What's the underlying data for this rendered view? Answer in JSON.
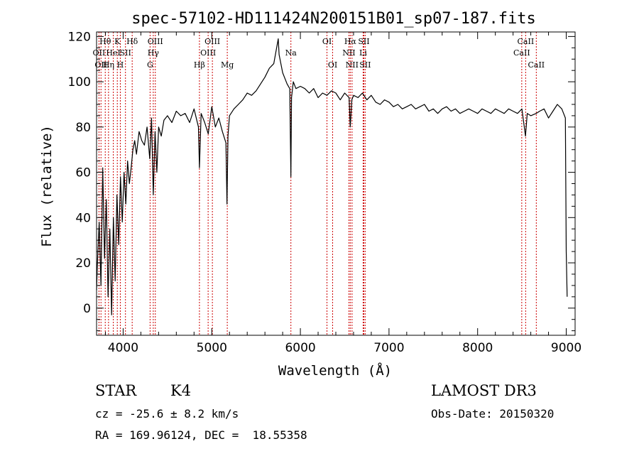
{
  "chart_data": {
    "type": "line",
    "title": "spec-57102-HD111424N200151B01_sp07-187.fits",
    "xlabel": "Wavelength (Å)",
    "ylabel": "Flux (relative)",
    "xlim": [
      3700,
      9100
    ],
    "ylim": [
      -12,
      122
    ],
    "x_ticks": [
      4000,
      5000,
      6000,
      7000,
      8000,
      9000
    ],
    "y_ticks": [
      0,
      20,
      40,
      60,
      80,
      100,
      120
    ],
    "grid": false,
    "series_color": "#000000",
    "line_marker_color": "#cc0000",
    "spectrum": {
      "x": [
        3700,
        3710,
        3730,
        3750,
        3770,
        3790,
        3810,
        3830,
        3850,
        3870,
        3890,
        3910,
        3930,
        3950,
        3970,
        3990,
        4010,
        4030,
        4050,
        4070,
        4090,
        4110,
        4130,
        4150,
        4180,
        4210,
        4240,
        4270,
        4300,
        4320,
        4340,
        4360,
        4380,
        4400,
        4430,
        4460,
        4500,
        4550,
        4600,
        4650,
        4700,
        4750,
        4800,
        4850,
        4861,
        4880,
        4920,
        4960,
        5000,
        5040,
        5080,
        5120,
        5160,
        5172,
        5183,
        5200,
        5250,
        5300,
        5350,
        5400,
        5450,
        5500,
        5550,
        5600,
        5650,
        5700,
        5750,
        5760,
        5800,
        5850,
        5880,
        5893,
        5900,
        5920,
        5950,
        6000,
        6050,
        6100,
        6150,
        6200,
        6250,
        6300,
        6350,
        6400,
        6450,
        6500,
        6550,
        6563,
        6580,
        6600,
        6650,
        6700,
        6750,
        6800,
        6850,
        6900,
        6950,
        7000,
        7050,
        7100,
        7150,
        7200,
        7250,
        7300,
        7350,
        7400,
        7450,
        7500,
        7550,
        7600,
        7650,
        7700,
        7750,
        7800,
        7850,
        7900,
        7950,
        8000,
        8050,
        8100,
        8150,
        8200,
        8250,
        8300,
        8350,
        8400,
        8450,
        8500,
        8540,
        8560,
        8600,
        8660,
        8700,
        8750,
        8800,
        8850,
        8900,
        8950,
        8990,
        9000,
        9010
      ],
      "y": [
        8,
        20,
        38,
        10,
        62,
        22,
        48,
        5,
        35,
        -3,
        40,
        12,
        50,
        28,
        58,
        38,
        60,
        46,
        65,
        55,
        62,
        70,
        74,
        68,
        78,
        74,
        72,
        80,
        66,
        84,
        50,
        78,
        60,
        80,
        76,
        83,
        85,
        82,
        87,
        85,
        86,
        82,
        88,
        80,
        62,
        86,
        82,
        77,
        89,
        80,
        84,
        78,
        73,
        46,
        76,
        85,
        88,
        90,
        92,
        95,
        94,
        96,
        99,
        102,
        106,
        108,
        119,
        112,
        104,
        99,
        97,
        58,
        93,
        100,
        97,
        98,
        97,
        95,
        97,
        93,
        95,
        94,
        96,
        95,
        92,
        95,
        93,
        80,
        92,
        94,
        93,
        95,
        92,
        94,
        91,
        90,
        92,
        91,
        89,
        90,
        88,
        89,
        90,
        88,
        89,
        90,
        87,
        88,
        86,
        88,
        89,
        87,
        88,
        86,
        87,
        88,
        87,
        86,
        88,
        87,
        86,
        88,
        87,
        86,
        88,
        87,
        86,
        88,
        76,
        86,
        85,
        86,
        87,
        88,
        84,
        87,
        90,
        88,
        84,
        25,
        5
      ]
    },
    "lines": [
      {
        "x": 3727,
        "label": "OII",
        "row": 2
      },
      {
        "x": 3750,
        "label": "OII",
        "row": 3
      },
      {
        "x": 3798,
        "label": "Hθ",
        "row": 1
      },
      {
        "x": 3835,
        "label": "Hη",
        "row": 3
      },
      {
        "x": 3889,
        "label": "HeI",
        "row": 2
      },
      {
        "x": 3934,
        "label": "K",
        "row": 1
      },
      {
        "x": 3968,
        "label": "H",
        "row": 3
      },
      {
        "x": 4026,
        "label": "SII",
        "row": 2
      },
      {
        "x": 4102,
        "label": "Hδ",
        "row": 1
      },
      {
        "x": 4304,
        "label": "G",
        "row": 3
      },
      {
        "x": 4340,
        "label": "Hγ",
        "row": 2
      },
      {
        "x": 4363,
        "label": "OIII",
        "row": 1
      },
      {
        "x": 4861,
        "label": "Hβ",
        "row": 3
      },
      {
        "x": 4959,
        "label": "OIII",
        "row": 2
      },
      {
        "x": 5007,
        "label": "OIII",
        "row": 1
      },
      {
        "x": 5175,
        "label": "Mg",
        "row": 3
      },
      {
        "x": 5893,
        "label": "Na",
        "row": 2
      },
      {
        "x": 6300,
        "label": "OI",
        "row": 1
      },
      {
        "x": 6364,
        "label": "OI",
        "row": 3
      },
      {
        "x": 6548,
        "label": "NII",
        "row": 2
      },
      {
        "x": 6563,
        "label": "Hα",
        "row": 1
      },
      {
        "x": 6583,
        "label": "NII",
        "row": 3
      },
      {
        "x": 6708,
        "label": "Li",
        "row": 2
      },
      {
        "x": 6716,
        "label": "SII",
        "row": 1
      },
      {
        "x": 6731,
        "label": "SII",
        "row": 3
      },
      {
        "x": 8498,
        "label": "CaII",
        "row": 2
      },
      {
        "x": 8542,
        "label": "CaII",
        "row": 1
      },
      {
        "x": 8662,
        "label": "CaII",
        "row": 3
      }
    ]
  },
  "info": {
    "object_class": "STAR",
    "subclass": "K4",
    "survey": "LAMOST DR3",
    "redshift_text": "cz = -25.6 ± 8.2 km/s",
    "obs_date": "Obs-Date: 20150320",
    "coords": "RA = 169.96124, DEC =  18.55358"
  }
}
